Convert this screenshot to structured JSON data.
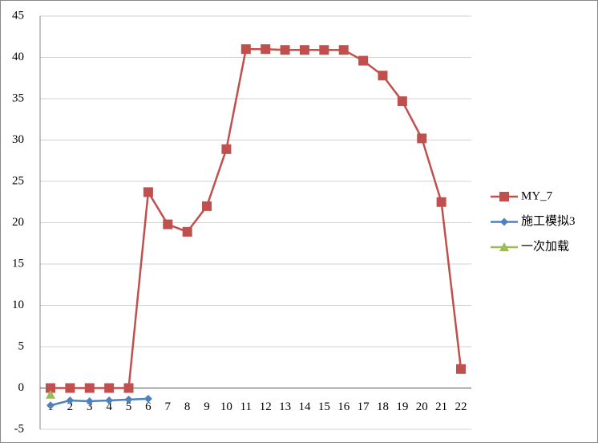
{
  "chart_data": {
    "type": "line",
    "categories": [
      "1",
      "2",
      "3",
      "4",
      "5",
      "6",
      "7",
      "8",
      "9",
      "10",
      "11",
      "12",
      "13",
      "14",
      "15",
      "16",
      "17",
      "18",
      "19",
      "20",
      "21",
      "22"
    ],
    "series": [
      {
        "name": "MY_7",
        "color": "#c0504d",
        "marker": "square",
        "values": [
          0,
          0,
          0,
          0,
          0,
          23.7,
          19.8,
          18.9,
          22,
          28.9,
          41,
          41,
          40.9,
          40.9,
          40.9,
          40.9,
          39.6,
          37.8,
          34.7,
          30.2,
          22.5,
          2.3
        ]
      },
      {
        "name": "施工模拟3",
        "color": "#4f81bd",
        "marker": "diamond",
        "values": [
          -2.1,
          -1.5,
          -1.6,
          -1.5,
          -1.4,
          -1.3,
          null,
          null,
          null,
          null,
          null,
          null,
          null,
          null,
          null,
          null,
          null,
          null,
          null,
          null,
          null,
          null
        ]
      },
      {
        "name": "一次加载",
        "color": "#9bbb59",
        "marker": "triangle",
        "values": [
          -0.8,
          null,
          null,
          null,
          null,
          null,
          null,
          null,
          null,
          null,
          null,
          null,
          null,
          null,
          null,
          null,
          null,
          null,
          null,
          null,
          null,
          null
        ]
      }
    ],
    "ylim": [
      -5,
      45
    ],
    "yticks": [
      -5,
      0,
      5,
      10,
      15,
      20,
      25,
      30,
      35,
      40,
      45
    ],
    "grid": true,
    "legend": "right"
  }
}
